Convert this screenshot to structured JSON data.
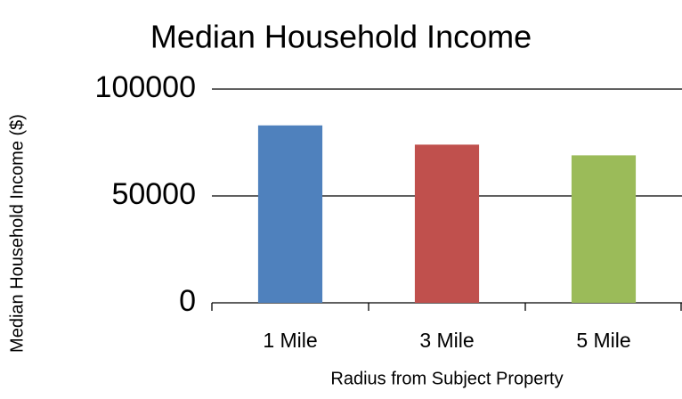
{
  "chart_data": {
    "type": "bar",
    "title": "Median Household Income",
    "x_label": "Radius from Subject Property",
    "y_label": "Median Household Income ($)",
    "categories": [
      "1 Mile",
      "3 Mile",
      "5 Mile"
    ],
    "values": [
      83000,
      74000,
      69000
    ],
    "colors": [
      "#4f81bd",
      "#c0504d",
      "#9bbb59"
    ],
    "ylim": [
      0,
      100000
    ],
    "yticks": [
      0,
      50000,
      100000
    ],
    "grid": true
  }
}
